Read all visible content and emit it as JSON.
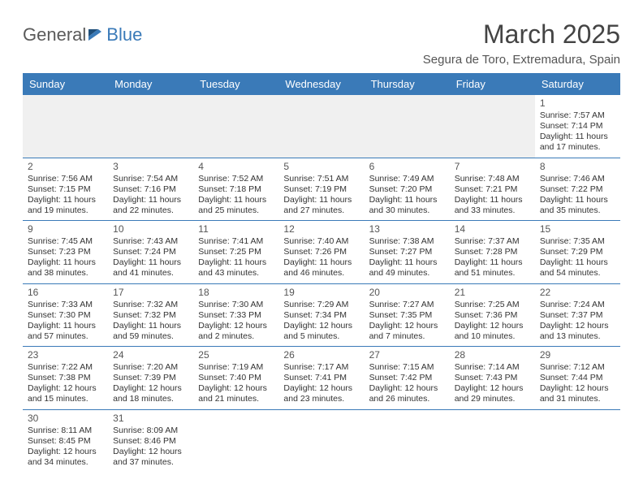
{
  "logo": {
    "text1": "General",
    "text2": "Blue"
  },
  "title": "March 2025",
  "location": "Segura de Toro, Extremadura, Spain",
  "colors": {
    "header_bg": "#3a7ab8",
    "header_text": "#ffffff",
    "body_text": "#333333",
    "rule": "#3a7ab8",
    "muted_bg": "#f0f0f0",
    "logo_gray": "#5a5a5a",
    "logo_blue": "#3a7ab8"
  },
  "dayHeaders": [
    "Sunday",
    "Monday",
    "Tuesday",
    "Wednesday",
    "Thursday",
    "Friday",
    "Saturday"
  ],
  "weeks": [
    [
      null,
      null,
      null,
      null,
      null,
      null,
      {
        "n": "1",
        "sr": "7:57 AM",
        "ss": "7:14 PM",
        "dl": "11 hours and 17 minutes."
      }
    ],
    [
      {
        "n": "2",
        "sr": "7:56 AM",
        "ss": "7:15 PM",
        "dl": "11 hours and 19 minutes."
      },
      {
        "n": "3",
        "sr": "7:54 AM",
        "ss": "7:16 PM",
        "dl": "11 hours and 22 minutes."
      },
      {
        "n": "4",
        "sr": "7:52 AM",
        "ss": "7:18 PM",
        "dl": "11 hours and 25 minutes."
      },
      {
        "n": "5",
        "sr": "7:51 AM",
        "ss": "7:19 PM",
        "dl": "11 hours and 27 minutes."
      },
      {
        "n": "6",
        "sr": "7:49 AM",
        "ss": "7:20 PM",
        "dl": "11 hours and 30 minutes."
      },
      {
        "n": "7",
        "sr": "7:48 AM",
        "ss": "7:21 PM",
        "dl": "11 hours and 33 minutes."
      },
      {
        "n": "8",
        "sr": "7:46 AM",
        "ss": "7:22 PM",
        "dl": "11 hours and 35 minutes."
      }
    ],
    [
      {
        "n": "9",
        "sr": "7:45 AM",
        "ss": "7:23 PM",
        "dl": "11 hours and 38 minutes."
      },
      {
        "n": "10",
        "sr": "7:43 AM",
        "ss": "7:24 PM",
        "dl": "11 hours and 41 minutes."
      },
      {
        "n": "11",
        "sr": "7:41 AM",
        "ss": "7:25 PM",
        "dl": "11 hours and 43 minutes."
      },
      {
        "n": "12",
        "sr": "7:40 AM",
        "ss": "7:26 PM",
        "dl": "11 hours and 46 minutes."
      },
      {
        "n": "13",
        "sr": "7:38 AM",
        "ss": "7:27 PM",
        "dl": "11 hours and 49 minutes."
      },
      {
        "n": "14",
        "sr": "7:37 AM",
        "ss": "7:28 PM",
        "dl": "11 hours and 51 minutes."
      },
      {
        "n": "15",
        "sr": "7:35 AM",
        "ss": "7:29 PM",
        "dl": "11 hours and 54 minutes."
      }
    ],
    [
      {
        "n": "16",
        "sr": "7:33 AM",
        "ss": "7:30 PM",
        "dl": "11 hours and 57 minutes."
      },
      {
        "n": "17",
        "sr": "7:32 AM",
        "ss": "7:32 PM",
        "dl": "11 hours and 59 minutes."
      },
      {
        "n": "18",
        "sr": "7:30 AM",
        "ss": "7:33 PM",
        "dl": "12 hours and 2 minutes."
      },
      {
        "n": "19",
        "sr": "7:29 AM",
        "ss": "7:34 PM",
        "dl": "12 hours and 5 minutes."
      },
      {
        "n": "20",
        "sr": "7:27 AM",
        "ss": "7:35 PM",
        "dl": "12 hours and 7 minutes."
      },
      {
        "n": "21",
        "sr": "7:25 AM",
        "ss": "7:36 PM",
        "dl": "12 hours and 10 minutes."
      },
      {
        "n": "22",
        "sr": "7:24 AM",
        "ss": "7:37 PM",
        "dl": "12 hours and 13 minutes."
      }
    ],
    [
      {
        "n": "23",
        "sr": "7:22 AM",
        "ss": "7:38 PM",
        "dl": "12 hours and 15 minutes."
      },
      {
        "n": "24",
        "sr": "7:20 AM",
        "ss": "7:39 PM",
        "dl": "12 hours and 18 minutes."
      },
      {
        "n": "25",
        "sr": "7:19 AM",
        "ss": "7:40 PM",
        "dl": "12 hours and 21 minutes."
      },
      {
        "n": "26",
        "sr": "7:17 AM",
        "ss": "7:41 PM",
        "dl": "12 hours and 23 minutes."
      },
      {
        "n": "27",
        "sr": "7:15 AM",
        "ss": "7:42 PM",
        "dl": "12 hours and 26 minutes."
      },
      {
        "n": "28",
        "sr": "7:14 AM",
        "ss": "7:43 PM",
        "dl": "12 hours and 29 minutes."
      },
      {
        "n": "29",
        "sr": "7:12 AM",
        "ss": "7:44 PM",
        "dl": "12 hours and 31 minutes."
      }
    ],
    [
      {
        "n": "30",
        "sr": "8:11 AM",
        "ss": "8:45 PM",
        "dl": "12 hours and 34 minutes."
      },
      {
        "n": "31",
        "sr": "8:09 AM",
        "ss": "8:46 PM",
        "dl": "12 hours and 37 minutes."
      },
      null,
      null,
      null,
      null,
      null
    ]
  ],
  "labels": {
    "sunrise": "Sunrise: ",
    "sunset": "Sunset: ",
    "daylight": "Daylight: "
  }
}
